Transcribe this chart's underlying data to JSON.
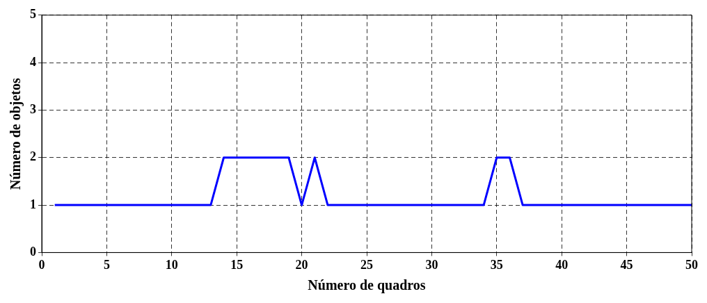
{
  "chart_data": {
    "type": "line",
    "xlabel": "Número de quadros",
    "ylabel": "Número de objetos",
    "series": [
      {
        "color": "#0000ff",
        "x": [
          1,
          13,
          14,
          19,
          20,
          21,
          22,
          34,
          35,
          36,
          37,
          50
        ],
        "values": [
          1,
          1,
          2,
          2,
          1,
          2,
          1,
          1,
          2,
          2,
          1,
          1
        ]
      }
    ],
    "xlim": [
      0,
      50
    ],
    "xticks": [
      0,
      5,
      10,
      15,
      20,
      25,
      30,
      35,
      40,
      45,
      50
    ],
    "ylim": [
      0,
      5
    ],
    "yticks": [
      0,
      1,
      2,
      3,
      4,
      5
    ],
    "grid": true,
    "legend": false,
    "marker": "none",
    "line_style": "solid"
  }
}
